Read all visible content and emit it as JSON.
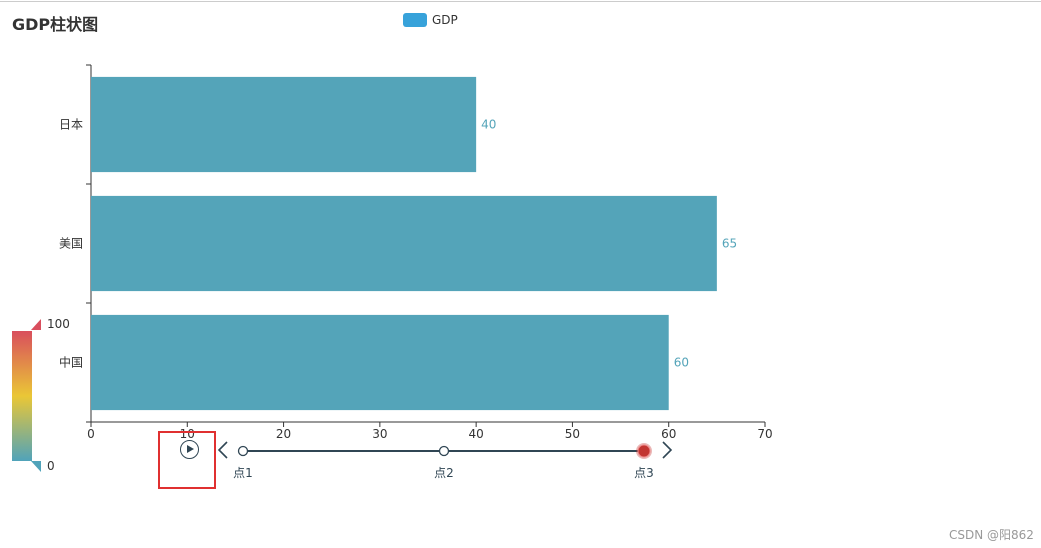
{
  "chart_data": {
    "type": "bar",
    "orientation": "horizontal",
    "title": "GDP柱状图",
    "legend": [
      "GDP"
    ],
    "legend_position": "top-center",
    "categories": [
      "中国",
      "美国",
      "日本"
    ],
    "series": [
      {
        "name": "GDP",
        "values": [
          60,
          65,
          40
        ],
        "color": "#54A4B9"
      }
    ],
    "xlim": [
      0,
      70
    ],
    "xticks": [
      "0",
      "10",
      "20",
      "30",
      "40",
      "50",
      "60",
      "70"
    ],
    "grid": false,
    "show_data_labels": true
  },
  "visual_map": {
    "max_label": "100",
    "min_label": "0",
    "colors": [
      "#d94e5d",
      "#eac736",
      "#50a3ba"
    ]
  },
  "timeline": {
    "play_icon": "play-icon",
    "prev_icon": "chevron-left-icon",
    "next_icon": "chevron-right-icon",
    "points": [
      {
        "label": "点1"
      },
      {
        "label": "点2"
      },
      {
        "label": "点3"
      }
    ],
    "current_index": 2,
    "accent": "#c23531",
    "line_color": "#304654"
  },
  "watermark": "CSDN @阳862"
}
